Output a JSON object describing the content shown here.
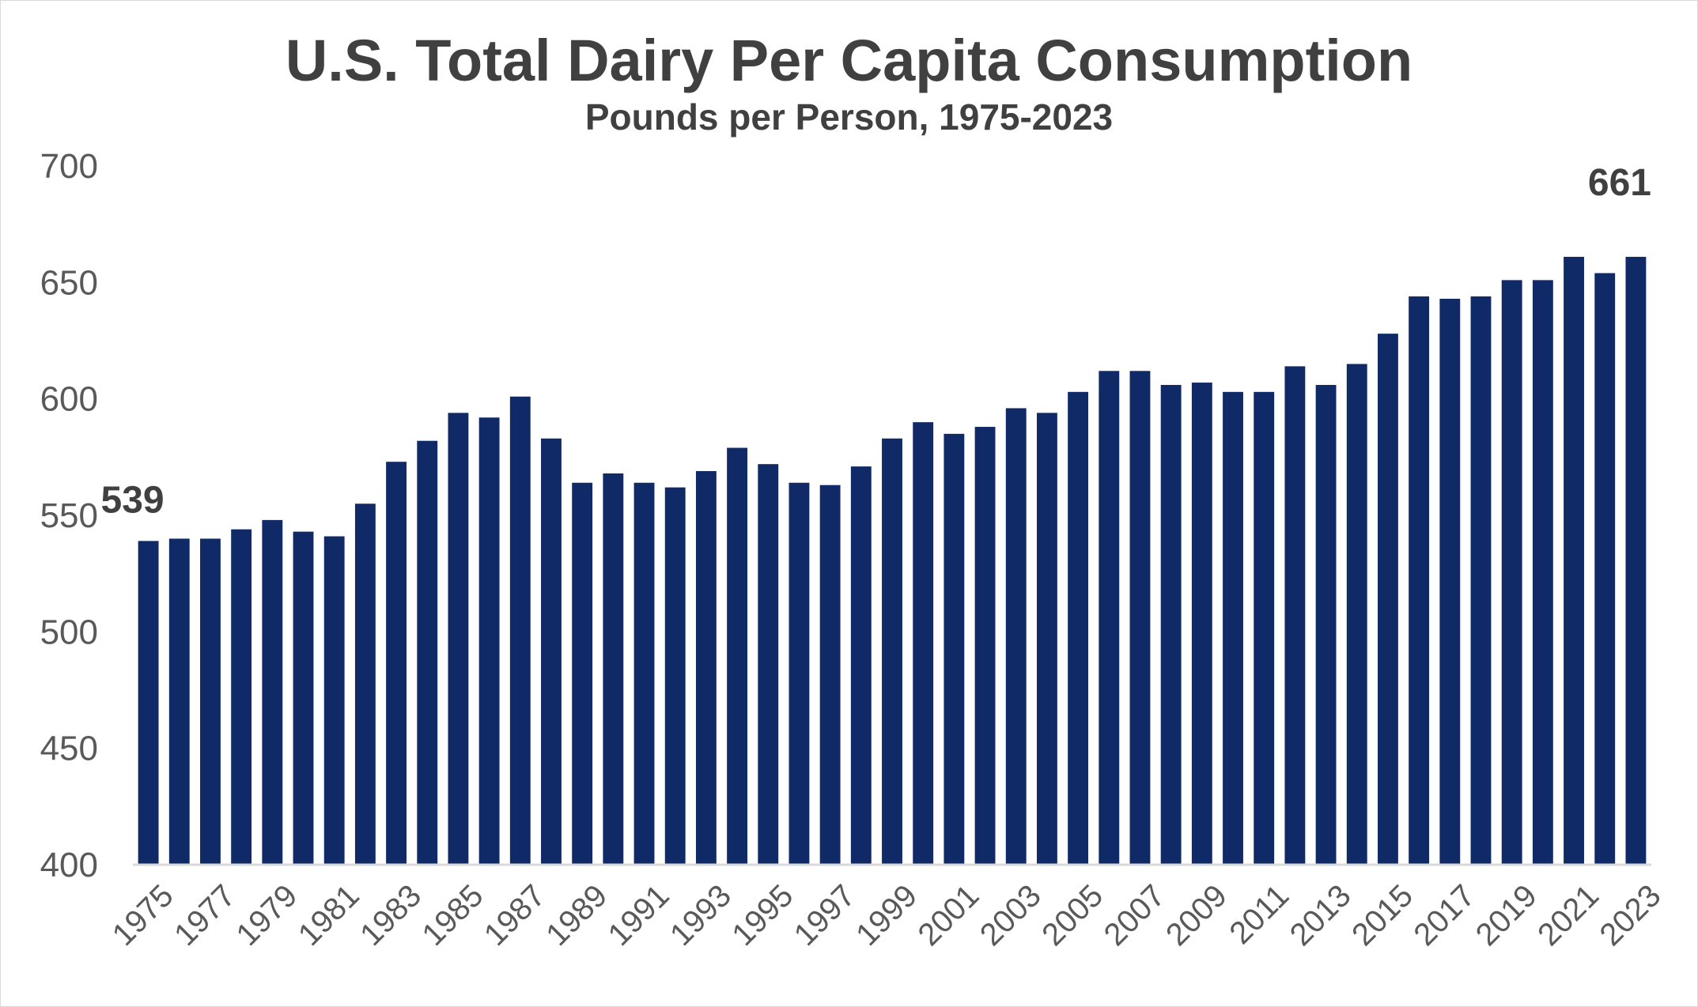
{
  "chart_data": {
    "type": "bar",
    "title": "U.S. Total Dairy Per Capita Consumption",
    "subtitle": "Pounds per Person, 1975-2023",
    "xlabel": "",
    "ylabel": "",
    "ylim": [
      400,
      700
    ],
    "yticks": [
      400,
      450,
      500,
      550,
      600,
      650,
      700
    ],
    "grid": false,
    "bar_color": "#0f2a66",
    "categories": [
      "1975",
      "1976",
      "1977",
      "1978",
      "1979",
      "1980",
      "1981",
      "1982",
      "1983",
      "1984",
      "1985",
      "1986",
      "1987",
      "1988",
      "1989",
      "1990",
      "1991",
      "1992",
      "1993",
      "1994",
      "1995",
      "1996",
      "1997",
      "1998",
      "1999",
      "2000",
      "2001",
      "2002",
      "2003",
      "2004",
      "2005",
      "2006",
      "2007",
      "2008",
      "2009",
      "2010",
      "2011",
      "2012",
      "2013",
      "2014",
      "2015",
      "2016",
      "2017",
      "2018",
      "2019",
      "2020",
      "2021",
      "2022",
      "2023"
    ],
    "x_tick_labels": [
      "1975",
      "1977",
      "1979",
      "1981",
      "1983",
      "1985",
      "1987",
      "1989",
      "1991",
      "1993",
      "1995",
      "1997",
      "1999",
      "2001",
      "2003",
      "2005",
      "2007",
      "2009",
      "2011",
      "2013",
      "2015",
      "2017",
      "2019",
      "2021",
      "2023"
    ],
    "values": [
      539,
      540,
      540,
      544,
      548,
      543,
      541,
      555,
      573,
      582,
      594,
      592,
      601,
      583,
      564,
      568,
      564,
      562,
      569,
      579,
      572,
      564,
      563,
      571,
      583,
      590,
      585,
      588,
      596,
      594,
      603,
      612,
      612,
      606,
      607,
      603,
      603,
      614,
      606,
      615,
      628,
      644,
      643,
      644,
      651,
      651,
      661,
      654,
      661
    ],
    "data_labels": [
      {
        "category": "1975",
        "text": "539"
      },
      {
        "category": "2023",
        "text": "661"
      }
    ]
  }
}
